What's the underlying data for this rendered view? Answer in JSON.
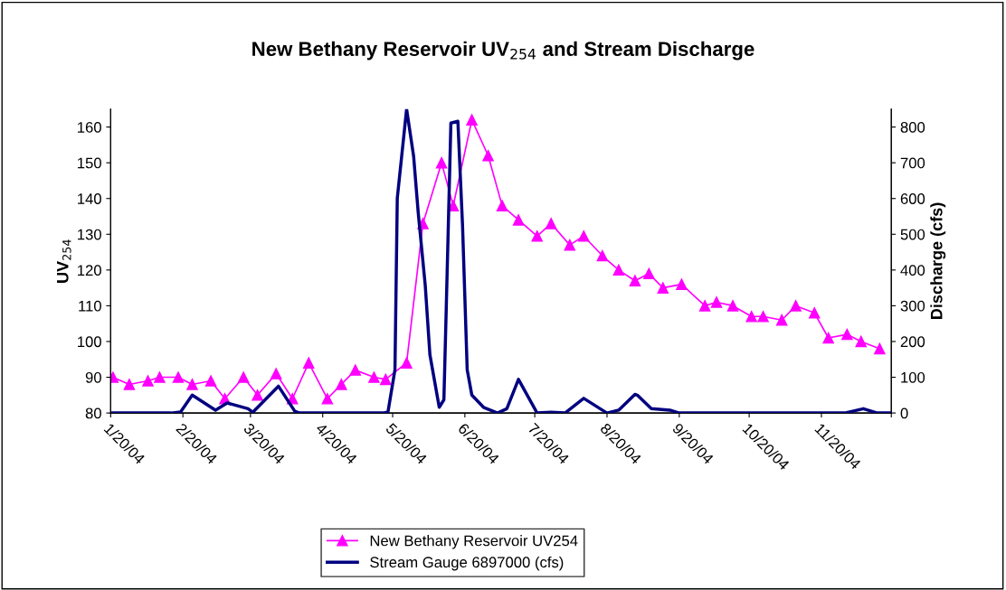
{
  "chart_data": {
    "type": "line",
    "title": "New Bethany Reservoir UV$_{254}$ and Stream Discharge",
    "ylabel": "UV$_{254}$",
    "y2label": "Discharge (cfs)",
    "xlim": [
      "2004-01-20",
      "2004-12-20"
    ],
    "xticks": [
      {
        "value": "2004-01-20",
        "label": "1/20/04"
      },
      {
        "value": "2004-02-20",
        "label": "2/20/04"
      },
      {
        "value": "2004-03-20",
        "label": "3/20/04"
      },
      {
        "value": "2004-04-20",
        "label": "4/20/04"
      },
      {
        "value": "2004-05-20",
        "label": "5/20/04"
      },
      {
        "value": "2004-06-20",
        "label": "6/20/04"
      },
      {
        "value": "2004-07-20",
        "label": "7/20/04"
      },
      {
        "value": "2004-08-20",
        "label": "8/20/04"
      },
      {
        "value": "2004-09-20",
        "label": "9/20/04"
      },
      {
        "value": "2004-10-20",
        "label": "10/20/04"
      },
      {
        "value": "2004-11-20",
        "label": "11/20/04"
      },
      {
        "value": "2004-12-20",
        "label": null
      }
    ],
    "ylim": [
      80,
      165
    ],
    "yticks": [
      80,
      90,
      100,
      110,
      120,
      130,
      140,
      150,
      160
    ],
    "y2lim": [
      0,
      850
    ],
    "y2ticks": [
      0,
      100,
      200,
      300,
      400,
      500,
      600,
      700,
      800
    ],
    "grid": false,
    "legend": "bottom",
    "series": [
      {
        "name": "New Bethany Reservoir UV254",
        "color": "#ff00ff",
        "marker": "triangle",
        "x": [
          "2004-01-21",
          "2004-01-28",
          "2004-02-05",
          "2004-02-10",
          "2004-02-18",
          "2004-02-24",
          "2004-03-03",
          "2004-03-09",
          "2004-03-17",
          "2004-03-23",
          "2004-03-31",
          "2004-04-07",
          "2004-04-14",
          "2004-04-22",
          "2004-04-28",
          "2004-05-04",
          "2004-05-12",
          "2004-05-17",
          "2004-05-26",
          "2004-06-02",
          "2004-06-10",
          "2004-06-15",
          "2004-06-23",
          "2004-06-30",
          "2004-07-06",
          "2004-07-13",
          "2004-07-21",
          "2004-07-27",
          "2004-08-04",
          "2004-08-10",
          "2004-08-18",
          "2004-08-25",
          "2004-09-01",
          "2004-09-07",
          "2004-09-13",
          "2004-09-21",
          "2004-10-01",
          "2004-10-06",
          "2004-10-13",
          "2004-10-21",
          "2004-10-26",
          "2004-11-03",
          "2004-11-09",
          "2004-11-17",
          "2004-11-23",
          "2004-12-01",
          "2004-12-07",
          "2004-12-15"
        ],
        "values": [
          90,
          88,
          89,
          90,
          90,
          88,
          89,
          84,
          90,
          85,
          91,
          84,
          94,
          84,
          88,
          92,
          90,
          89.4,
          94,
          133,
          150,
          138,
          162,
          152,
          138,
          134,
          129.5,
          133,
          127,
          129.5,
          124,
          120,
          117,
          119,
          115,
          116,
          110,
          111,
          110,
          107,
          107,
          106,
          110,
          108,
          101,
          102,
          100,
          98
        ]
      },
      {
        "name": "Stream Gauge 6897000 (cfs)",
        "color": "#000080",
        "marker": "none",
        "axis": "y2",
        "x": [
          "2004-01-21",
          "2004-02-15",
          "2004-02-19",
          "2004-02-24",
          "2004-03-05",
          "2004-03-10",
          "2004-03-19",
          "2004-03-21",
          "2004-04-01",
          "2004-04-08",
          "2004-04-10",
          "2004-04-28",
          "2004-05-16",
          "2004-05-18",
          "2004-05-21",
          "2004-05-22",
          "2004-05-26",
          "2004-05-29",
          "2004-05-31",
          "2004-06-03",
          "2004-06-05",
          "2004-06-09",
          "2004-06-11",
          "2004-06-12",
          "2004-06-14",
          "2004-06-17",
          "2004-06-19",
          "2004-06-21",
          "2004-06-23",
          "2004-06-28",
          "2004-07-04",
          "2004-07-08",
          "2004-07-13",
          "2004-07-21",
          "2004-07-27",
          "2004-08-02",
          "2004-08-10",
          "2004-08-20",
          "2004-08-25",
          "2004-09-01",
          "2004-09-02",
          "2004-09-08",
          "2004-09-16",
          "2004-09-20",
          "2004-11-30",
          "2004-12-08",
          "2004-12-14",
          "2004-12-20"
        ],
        "values": [
          0,
          0,
          3,
          50,
          8,
          28,
          12,
          2,
          75,
          5,
          0,
          0,
          0,
          3,
          121,
          601,
          850,
          719,
          559,
          357,
          163,
          16,
          37,
          290,
          811,
          816,
          525,
          121,
          50,
          16,
          0,
          12,
          94,
          0,
          2,
          0,
          41,
          0,
          8,
          52,
          50,
          12,
          8,
          0,
          0,
          12,
          0,
          0
        ]
      }
    ]
  }
}
